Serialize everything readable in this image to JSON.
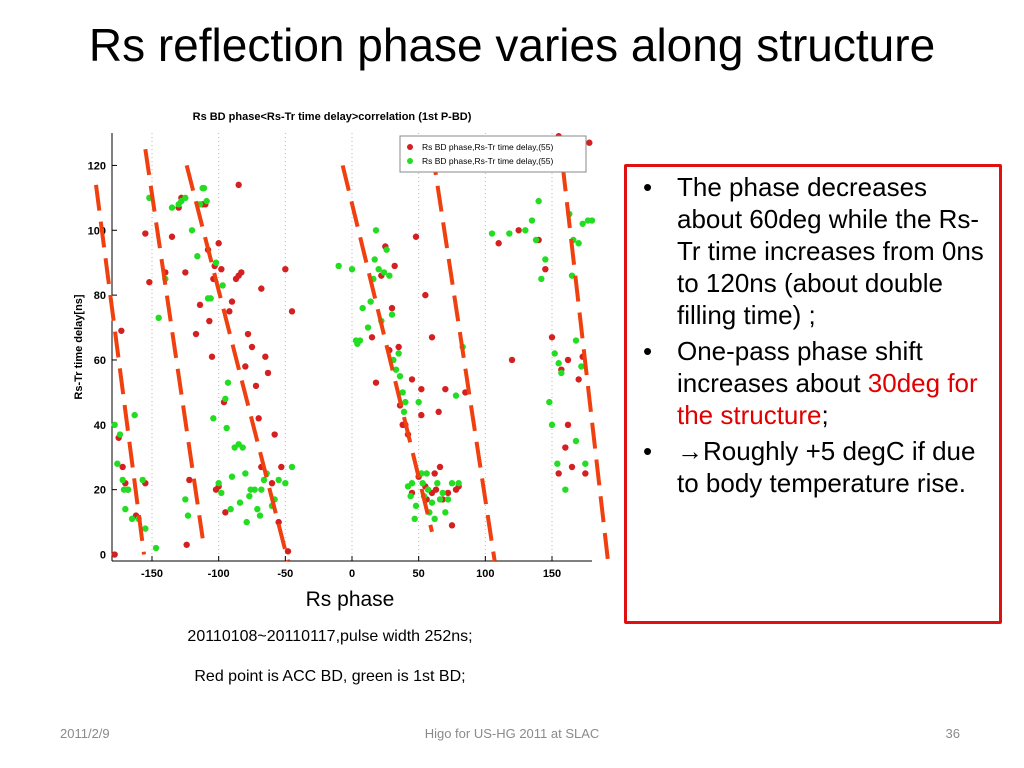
{
  "slide": {
    "title": "Rs reflection phase varies along structure",
    "x_axis_caption": "Rs phase",
    "caption_line1": "20110108~20110117,pulse width 252ns;",
    "caption_line2": "Red point is ACC BD, green is 1st BD;"
  },
  "notes": {
    "bullet_symbol": "•",
    "b1": "The phase decreases about 60deg while the Rs-Tr time increases from 0ns to 120ns (about double filling time) ;",
    "b2_pre": "One-pass phase shift increases about ",
    "b2_red": "30deg for the structure",
    "b2_post": ";",
    "b3_arrow": "→",
    "b3_text": "Roughly +5 degC if due to body temperature rise."
  },
  "footer": {
    "date": "2011/2/9",
    "center": "Higo for US-HG 2011 at SLAC",
    "page": "36"
  },
  "chart_data": {
    "type": "scatter",
    "title": "Rs BD phase<Rs-Tr time delay>correlation (1st P-BD)",
    "xlabel": "",
    "ylabel": "Rs-Tr time delay[ns]",
    "xlim": [
      -180,
      180
    ],
    "ylim": [
      -2,
      130
    ],
    "xticks": [
      -150,
      -100,
      -50,
      0,
      50,
      100,
      150
    ],
    "yticks": [
      0,
      20,
      40,
      60,
      80,
      100,
      120
    ],
    "grid": "vertical dotted",
    "legend_position": "top-right",
    "colors": {
      "red": "#d42020",
      "green": "#22dd22",
      "trend": "#f04010"
    },
    "series": [
      {
        "name": "Rs BD phase,Rs-Tr time delay,(55)",
        "color": "#d42020",
        "points": [
          [
            -178,
            0
          ],
          [
            -175,
            36
          ],
          [
            -173,
            69
          ],
          [
            -172,
            27
          ],
          [
            -170,
            22
          ],
          [
            -168,
            20
          ],
          [
            -162,
            12
          ],
          [
            -155,
            22
          ],
          [
            -155,
            99
          ],
          [
            -152,
            84
          ],
          [
            -140,
            87
          ],
          [
            -135,
            98
          ],
          [
            -130,
            107
          ],
          [
            -128,
            110
          ],
          [
            -125,
            87
          ],
          [
            -124,
            3
          ],
          [
            -122,
            23
          ],
          [
            -117,
            68
          ],
          [
            -114,
            77
          ],
          [
            -112,
            108
          ],
          [
            -110,
            108
          ],
          [
            -108,
            94
          ],
          [
            -107,
            72
          ],
          [
            -105,
            61
          ],
          [
            -104,
            85
          ],
          [
            -103,
            89
          ],
          [
            -102,
            20
          ],
          [
            -100,
            21
          ],
          [
            -100,
            96
          ],
          [
            -98,
            88
          ],
          [
            -96,
            47
          ],
          [
            -95,
            13
          ],
          [
            -92,
            75
          ],
          [
            -90,
            78
          ],
          [
            -87,
            85
          ],
          [
            -85,
            114
          ],
          [
            -85,
            86
          ],
          [
            -83,
            87
          ],
          [
            -80,
            58
          ],
          [
            -78,
            68
          ],
          [
            -75,
            64
          ],
          [
            -72,
            52
          ],
          [
            -70,
            42
          ],
          [
            -68,
            27
          ],
          [
            -68,
            82
          ],
          [
            -65,
            61
          ],
          [
            -63,
            56
          ],
          [
            -60,
            22
          ],
          [
            -58,
            37
          ],
          [
            -55,
            10
          ],
          [
            -53,
            27
          ],
          [
            -50,
            88
          ],
          [
            -48,
            1
          ],
          [
            -45,
            75
          ],
          [
            15,
            67
          ],
          [
            18,
            53
          ],
          [
            22,
            86
          ],
          [
            25,
            95
          ],
          [
            28,
            63
          ],
          [
            30,
            76
          ],
          [
            32,
            89
          ],
          [
            35,
            64
          ],
          [
            36,
            46
          ],
          [
            38,
            40
          ],
          [
            40,
            40
          ],
          [
            42,
            37
          ],
          [
            45,
            54
          ],
          [
            45,
            19
          ],
          [
            48,
            98
          ],
          [
            50,
            24
          ],
          [
            52,
            43
          ],
          [
            52,
            51
          ],
          [
            55,
            21
          ],
          [
            55,
            80
          ],
          [
            56,
            17
          ],
          [
            58,
            128
          ],
          [
            60,
            67
          ],
          [
            60,
            19
          ],
          [
            62,
            25
          ],
          [
            63,
            20
          ],
          [
            65,
            44
          ],
          [
            66,
            27
          ],
          [
            68,
            17
          ],
          [
            70,
            51
          ],
          [
            72,
            19
          ],
          [
            75,
            9
          ],
          [
            78,
            20
          ],
          [
            80,
            21
          ],
          [
            85,
            50
          ],
          [
            110,
            96
          ],
          [
            120,
            60
          ],
          [
            125,
            100
          ],
          [
            140,
            97
          ],
          [
            145,
            88
          ],
          [
            150,
            67
          ],
          [
            155,
            25
          ],
          [
            155,
            129
          ],
          [
            157,
            57
          ],
          [
            160,
            33
          ],
          [
            162,
            40
          ],
          [
            162,
            60
          ],
          [
            165,
            27
          ],
          [
            170,
            54
          ],
          [
            173,
            61
          ],
          [
            175,
            25
          ],
          [
            178,
            127
          ]
        ]
      },
      {
        "name": "Rs BD phase,Rs-Tr time delay,(55)",
        "color": "#22dd22",
        "points": [
          [
            -178,
            40
          ],
          [
            -176,
            28
          ],
          [
            -174,
            37
          ],
          [
            -172,
            23
          ],
          [
            -171,
            20
          ],
          [
            -170,
            14
          ],
          [
            -168,
            20
          ],
          [
            -165,
            11
          ],
          [
            -163,
            43
          ],
          [
            -160,
            11
          ],
          [
            -157,
            23
          ],
          [
            -155,
            8
          ],
          [
            -152,
            110
          ],
          [
            -147,
            2
          ],
          [
            -145,
            73
          ],
          [
            -140,
            85
          ],
          [
            -135,
            107
          ],
          [
            -130,
            108
          ],
          [
            -128,
            109
          ],
          [
            -125,
            110
          ],
          [
            -125,
            17
          ],
          [
            -123,
            12
          ],
          [
            -120,
            100
          ],
          [
            -116,
            92
          ],
          [
            -114,
            108
          ],
          [
            -112,
            113
          ],
          [
            -111,
            113
          ],
          [
            -109,
            109
          ],
          [
            -108,
            79
          ],
          [
            -106,
            79
          ],
          [
            -104,
            42
          ],
          [
            -102,
            90
          ],
          [
            -100,
            22
          ],
          [
            -98,
            19
          ],
          [
            -97,
            83
          ],
          [
            -95,
            48
          ],
          [
            -94,
            39
          ],
          [
            -93,
            53
          ],
          [
            -91,
            14
          ],
          [
            -90,
            24
          ],
          [
            -88,
            33
          ],
          [
            -85,
            34
          ],
          [
            -84,
            16
          ],
          [
            -82,
            33
          ],
          [
            -80,
            25
          ],
          [
            -79,
            10
          ],
          [
            -77,
            18
          ],
          [
            -76,
            20
          ],
          [
            -73,
            20
          ],
          [
            -71,
            14
          ],
          [
            -69,
            12
          ],
          [
            -68,
            20
          ],
          [
            -66,
            23
          ],
          [
            -64,
            25
          ],
          [
            -60,
            15
          ],
          [
            -58,
            17
          ],
          [
            -55,
            23
          ],
          [
            -50,
            22
          ],
          [
            -45,
            27
          ],
          [
            -10,
            89
          ],
          [
            0,
            88
          ],
          [
            3,
            66
          ],
          [
            4,
            65
          ],
          [
            6,
            66
          ],
          [
            8,
            76
          ],
          [
            12,
            70
          ],
          [
            14,
            78
          ],
          [
            16,
            85
          ],
          [
            17,
            91
          ],
          [
            18,
            100
          ],
          [
            20,
            88
          ],
          [
            22,
            72
          ],
          [
            24,
            87
          ],
          [
            26,
            94
          ],
          [
            28,
            86
          ],
          [
            30,
            74
          ],
          [
            31,
            60
          ],
          [
            33,
            57
          ],
          [
            35,
            62
          ],
          [
            36,
            55
          ],
          [
            38,
            50
          ],
          [
            39,
            44
          ],
          [
            40,
            47
          ],
          [
            42,
            21
          ],
          [
            44,
            18
          ],
          [
            45,
            22
          ],
          [
            47,
            11
          ],
          [
            48,
            15
          ],
          [
            50,
            47
          ],
          [
            52,
            25
          ],
          [
            53,
            22
          ],
          [
            54,
            18
          ],
          [
            56,
            25
          ],
          [
            57,
            20
          ],
          [
            58,
            13
          ],
          [
            60,
            16
          ],
          [
            62,
            11
          ],
          [
            64,
            22
          ],
          [
            66,
            17
          ],
          [
            68,
            19
          ],
          [
            70,
            13
          ],
          [
            72,
            17
          ],
          [
            75,
            22
          ],
          [
            78,
            49
          ],
          [
            80,
            22
          ],
          [
            83,
            64
          ],
          [
            105,
            99
          ],
          [
            118,
            99
          ],
          [
            130,
            100
          ],
          [
            135,
            103
          ],
          [
            138,
            97
          ],
          [
            140,
            109
          ],
          [
            142,
            85
          ],
          [
            145,
            91
          ],
          [
            148,
            47
          ],
          [
            150,
            40
          ],
          [
            152,
            62
          ],
          [
            154,
            28
          ],
          [
            155,
            59
          ],
          [
            157,
            56
          ],
          [
            160,
            20
          ],
          [
            163,
            105
          ],
          [
            165,
            86
          ],
          [
            166,
            97
          ],
          [
            168,
            35
          ],
          [
            168,
            66
          ],
          [
            170,
            96
          ],
          [
            172,
            58
          ],
          [
            173,
            102
          ],
          [
            175,
            28
          ],
          [
            177,
            103
          ],
          [
            180,
            103
          ]
        ]
      }
    ],
    "trend_lines": [
      [
        [
          -192,
          114
        ],
        [
          -156,
          0
        ]
      ],
      [
        [
          -155,
          125
        ],
        [
          -112,
          5
        ]
      ],
      [
        [
          -124,
          120
        ],
        [
          -48,
          -2
        ]
      ],
      [
        [
          -7,
          120
        ],
        [
          60,
          7
        ]
      ],
      [
        [
          60,
          125
        ],
        [
          107,
          -2
        ]
      ],
      [
        [
          158,
          120
        ],
        [
          192,
          -2
        ]
      ]
    ]
  }
}
